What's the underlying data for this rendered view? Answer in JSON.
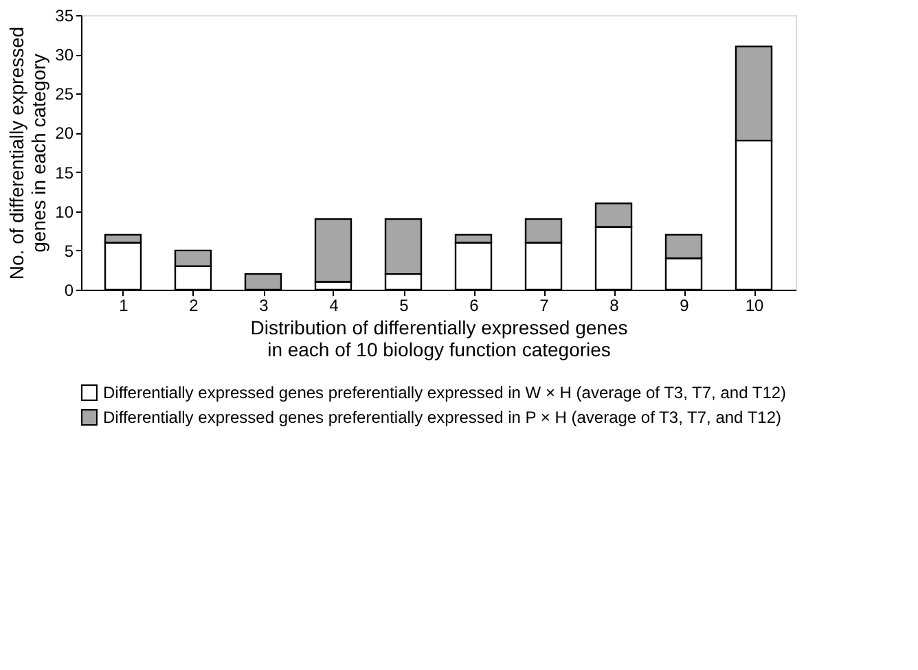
{
  "chart_data": {
    "type": "bar",
    "stacked": true,
    "xlabel": "Distribution of differentially expressed genes in each of 10 biology function categories",
    "ylabel": "No. of differentially expressed genes in each category",
    "categories": [
      "1",
      "2",
      "3",
      "4",
      "5",
      "6",
      "7",
      "8",
      "9",
      "10"
    ],
    "series": [
      {
        "name": "Differentially expressed genes preferentially expressed in W × H (average of T3, T7, and T12)",
        "color": "#ffffff",
        "values": [
          6,
          3,
          0,
          1,
          2,
          6,
          6,
          8,
          4,
          19
        ]
      },
      {
        "name": "Differentially expressed genes preferentially expressed in P × H (average of T3, T7, and T12)",
        "color": "#a6a6a6",
        "values": [
          1,
          2,
          2,
          8,
          7,
          1,
          3,
          3,
          3,
          12
        ]
      }
    ],
    "ylim": [
      0,
      35
    ],
    "yticks": [
      0,
      5,
      10,
      15,
      20,
      25,
      30,
      35
    ],
    "grid": false,
    "legend": "bottom"
  }
}
